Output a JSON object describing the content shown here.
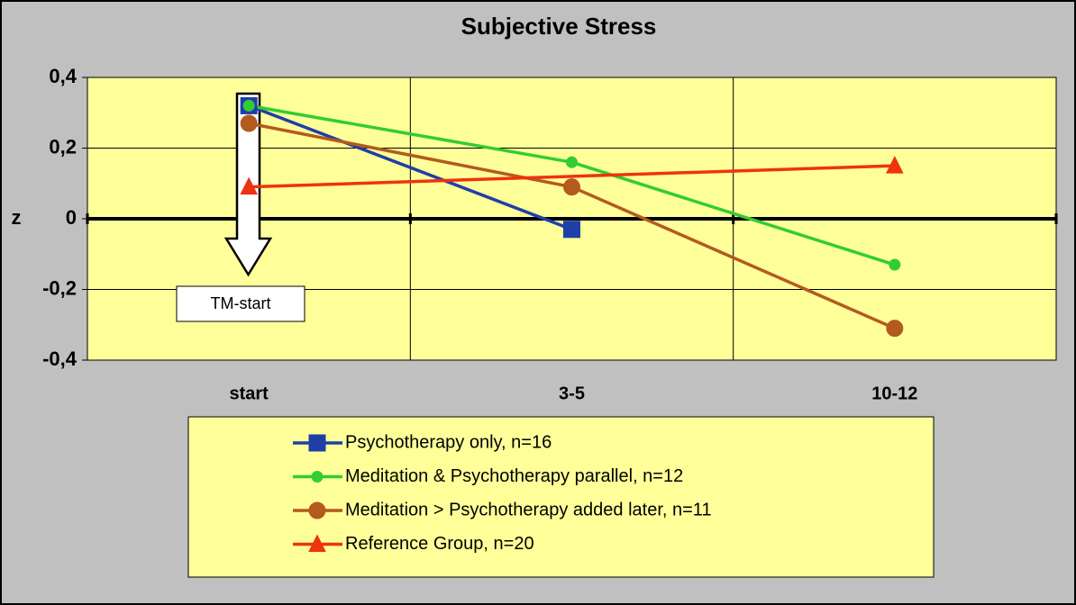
{
  "chart_data": {
    "type": "line",
    "title": "Subjective Stress",
    "y_label": "z",
    "categories": [
      "start",
      "3-5",
      "10-12"
    ],
    "series": [
      {
        "name": "Psychotherapy only, n=16",
        "color": "#1f3fa8",
        "marker": "square",
        "values": [
          0.32,
          -0.03,
          null
        ]
      },
      {
        "name": "Meditation & Psychotherapy parallel, n=12",
        "color": "#33cc33",
        "marker": "small-circle",
        "values": [
          0.32,
          0.16,
          -0.13
        ]
      },
      {
        "name": "Meditation > Psychotherapy added later, n=11",
        "color": "#b35a1f",
        "marker": "circle",
        "values": [
          0.27,
          0.09,
          -0.31
        ]
      },
      {
        "name": "Reference Group, n=20",
        "color": "#ee3311",
        "marker": "triangle",
        "values": [
          0.09,
          null,
          0.15
        ]
      }
    ],
    "span_gaps": true,
    "ylim": [
      -0.4,
      0.4
    ],
    "yticks": [
      {
        "value": 0.4,
        "label": "0,4"
      },
      {
        "value": 0.2,
        "label": "0,2"
      },
      0,
      {
        "value": -0.2,
        "label": "-0,2"
      },
      {
        "value": -0.4,
        "label": "-0,4"
      }
    ],
    "grid": true,
    "background": "#ffff99",
    "legend": "bottom",
    "annotation": "TM-start"
  }
}
